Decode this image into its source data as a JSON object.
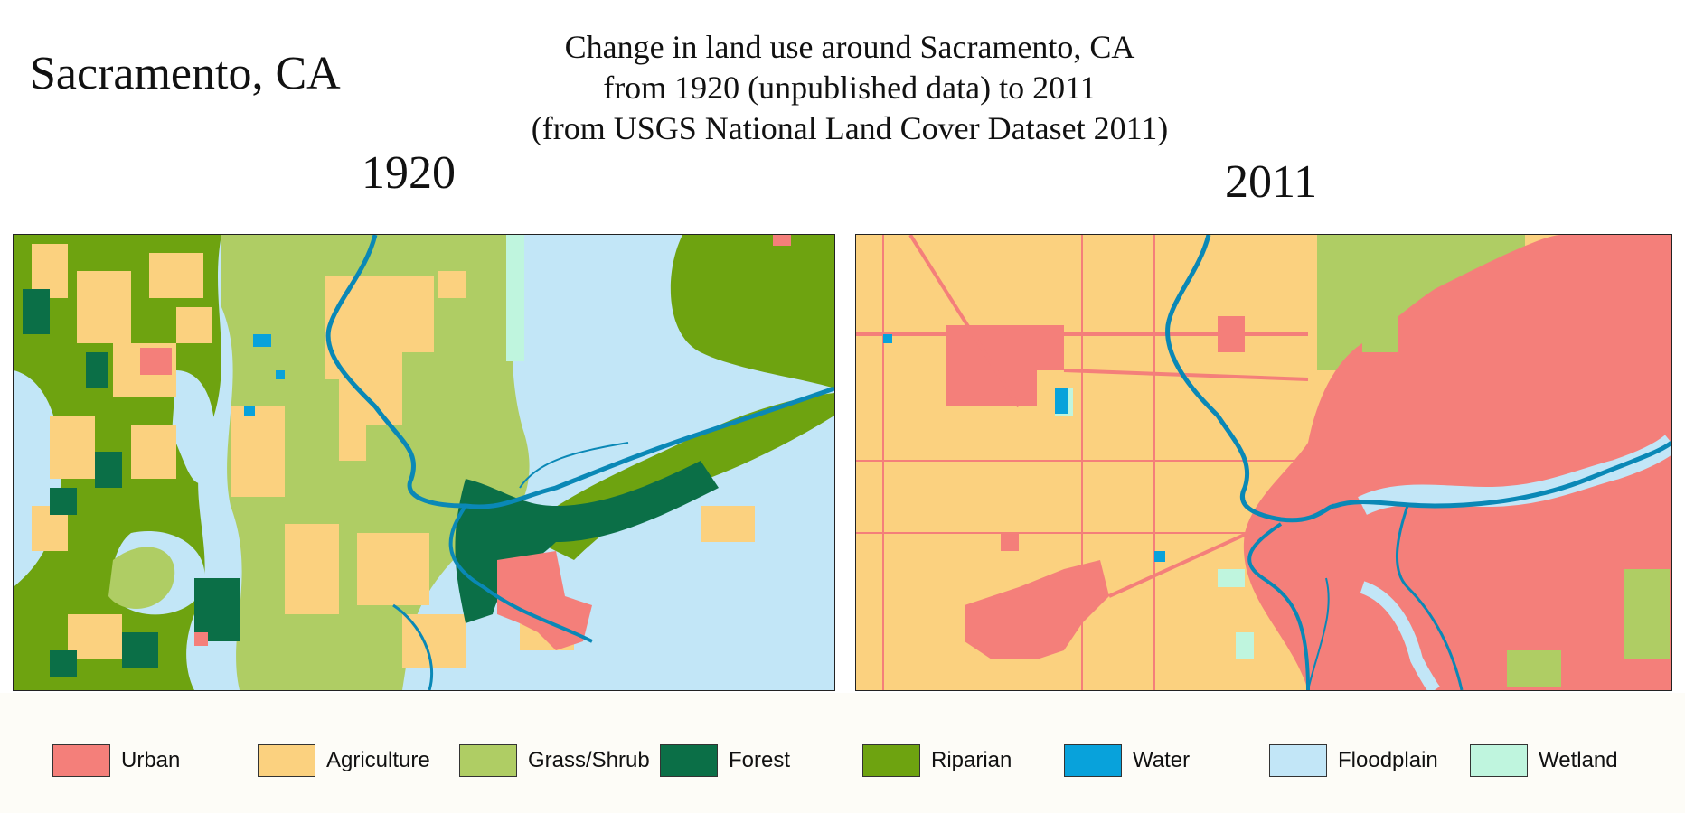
{
  "place_title": "Sacramento, CA",
  "main_title": {
    "line1": "Change in land use around Sacramento, CA",
    "line2": "from 1920 (unpublished data) to 2011",
    "line3": "(from USGS National Land Cover Dataset 2011)"
  },
  "maps": {
    "left_year": "1920",
    "right_year": "2011"
  },
  "legend": [
    {
      "label": "Urban",
      "color": "#f47f7a"
    },
    {
      "label": "Agriculture",
      "color": "#fbd17f"
    },
    {
      "label": "Grass/Shrub",
      "color": "#afcd64"
    },
    {
      "label": "Forest",
      "color": "#0b6f47"
    },
    {
      "label": "Riparian",
      "color": "#6ea310"
    },
    {
      "label": "Water",
      "color": "#08a2db"
    },
    {
      "label": "Floodplain",
      "color": "#c2e6f7"
    },
    {
      "label": "Wetland",
      "color": "#bff5de"
    }
  ]
}
